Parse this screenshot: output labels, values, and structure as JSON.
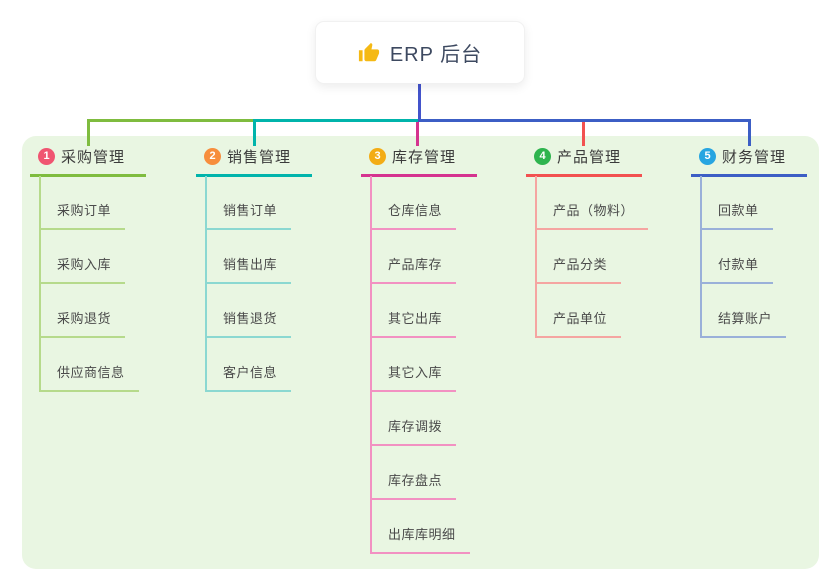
{
  "root": {
    "label": "ERP 后台",
    "icon": "thumbs-up-icon",
    "icon_color": "#f5b914",
    "connector_color": "#4353cb"
  },
  "canvas": {
    "page_bg": "#ffffff",
    "panel_bg": "#e9f6e2",
    "title_text_color": "#3b3b3b",
    "child_text_color": "#4a4a4a"
  },
  "branches": [
    {
      "number": "1",
      "title": "采购管理",
      "badge_color": "#f05571",
      "line_color": "#7fbc3f",
      "light_color": "#b6da8b",
      "children": [
        "采购订单",
        "采购入库",
        "采购退货",
        "供应商信息"
      ]
    },
    {
      "number": "2",
      "title": "销售管理",
      "badge_color": "#f78e3d",
      "line_color": "#00b4ab",
      "light_color": "#8bd8d1",
      "children": [
        "销售订单",
        "销售出库",
        "销售退货",
        "客户信息"
      ]
    },
    {
      "number": "3",
      "title": "库存管理",
      "badge_color": "#f3ac15",
      "line_color": "#d5338f",
      "light_color": "#f291c2",
      "children": [
        "仓库信息",
        "产品库存",
        "其它出库",
        "其它入库",
        "库存调拨",
        "库存盘点",
        "出库库明细"
      ]
    },
    {
      "number": "4",
      "title": "产品管理",
      "badge_color": "#2eb44e",
      "line_color": "#f25150",
      "light_color": "#f5a5a1",
      "children": [
        "产品（物料）",
        "产品分类",
        "产品单位"
      ]
    },
    {
      "number": "5",
      "title": "财务管理",
      "badge_color": "#27a5e1",
      "line_color": "#3c5ec5",
      "light_color": "#9ab0d9",
      "children": [
        "回款单",
        "付款单",
        "结算账户"
      ]
    }
  ]
}
